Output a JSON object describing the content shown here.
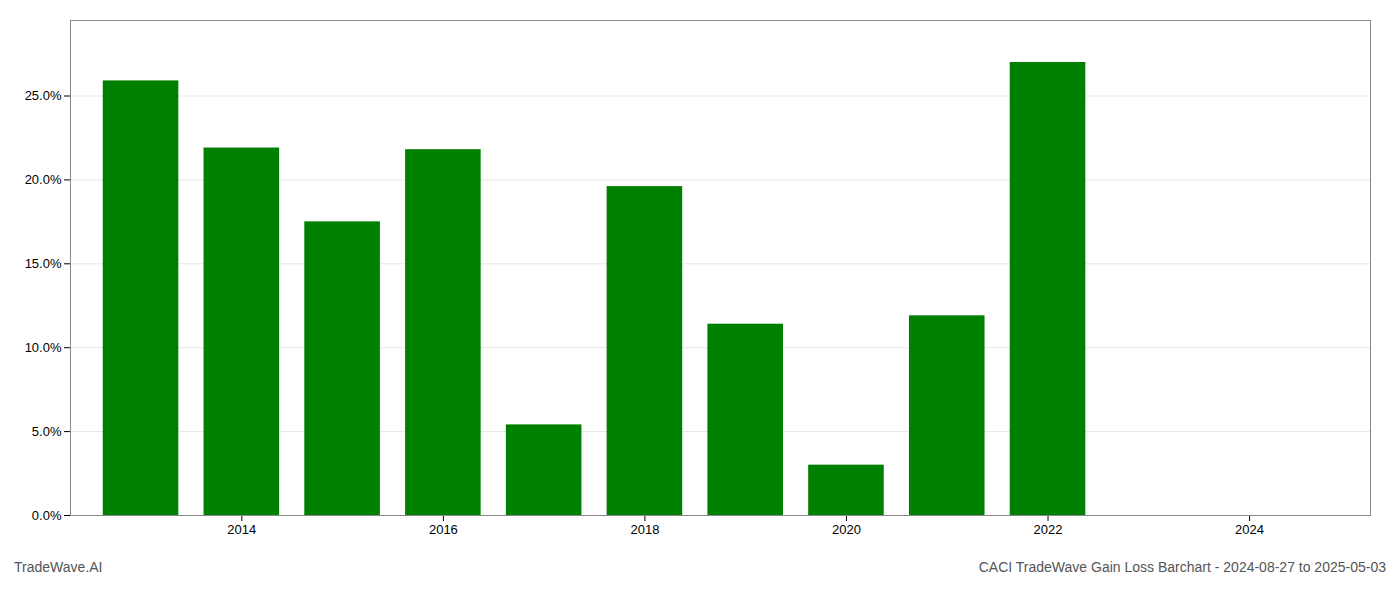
{
  "chart_data": {
    "type": "bar",
    "title": "CACI TradeWave Gain Loss Barchart - 2024-08-27 to 2025-05-03",
    "annotations": [
      "TradeWave.AI"
    ],
    "x": [
      2013,
      2014,
      2015,
      2016,
      2017,
      2018,
      2019,
      2020,
      2021,
      2022
    ],
    "values": [
      0.259,
      0.219,
      0.175,
      0.218,
      0.054,
      0.196,
      0.114,
      0.03,
      0.119,
      0.27
    ],
    "color": "#008000",
    "xlim": [
      2012.3,
      2025.2
    ],
    "xticks": [
      2014,
      2016,
      2018,
      2020,
      2022,
      2024
    ],
    "ylim": [
      0,
      0.295
    ],
    "yticks": [
      {
        "value": 0.0,
        "label": "0.0%"
      },
      {
        "value": 0.05,
        "label": "5.0%"
      },
      {
        "value": 0.1,
        "label": "10.0%"
      },
      {
        "value": 0.15,
        "label": "15.0%"
      },
      {
        "value": 0.2,
        "label": "20.0%"
      },
      {
        "value": 0.25,
        "label": "25.0%"
      }
    ],
    "grid": true
  }
}
